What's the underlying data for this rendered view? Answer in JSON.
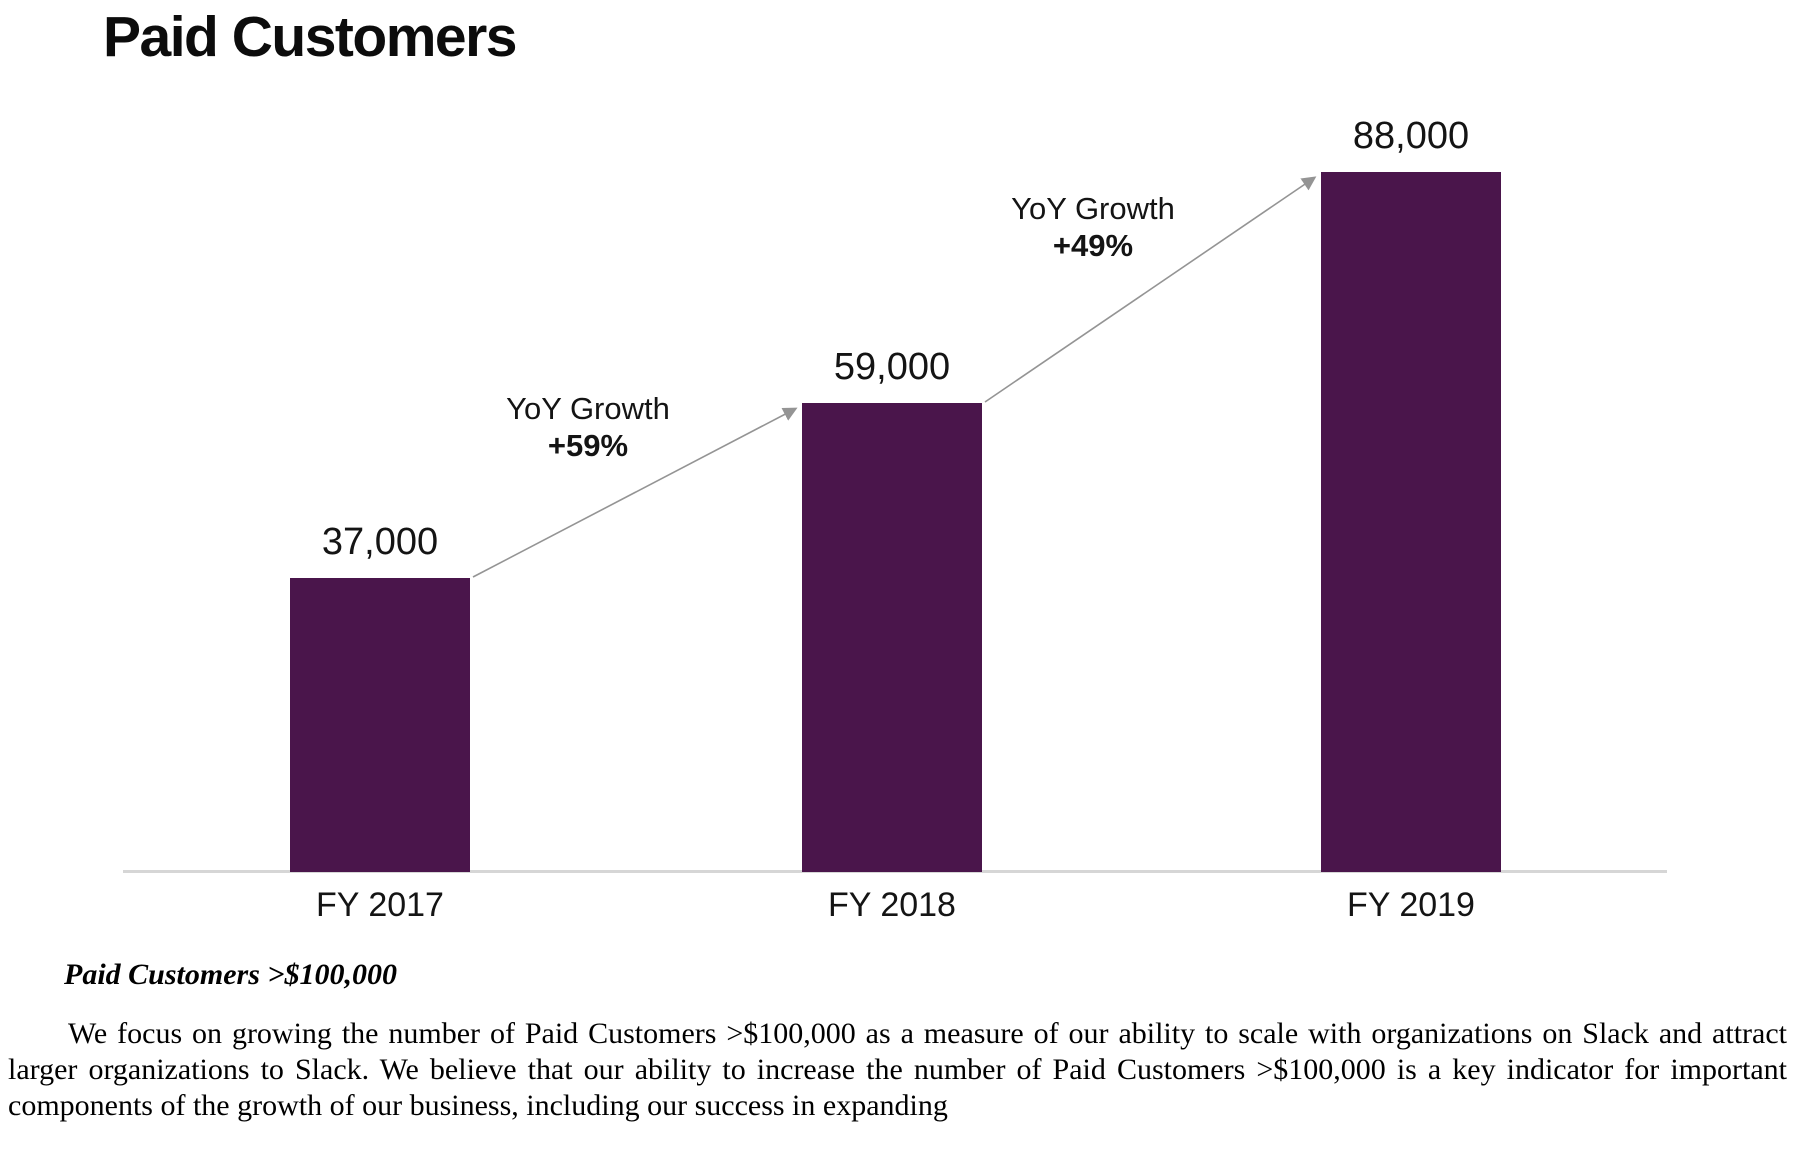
{
  "title": "Paid Customers",
  "chart_data": {
    "type": "bar",
    "title": "Paid Customers",
    "categories": [
      "FY 2017",
      "FY 2018",
      "FY 2019"
    ],
    "values": [
      37000,
      59000,
      88000
    ],
    "value_labels": [
      "37,000",
      "59,000",
      "88,000"
    ],
    "series": [
      {
        "name": "Paid Customers >$100,000",
        "values": [
          37000,
          59000,
          88000
        ]
      }
    ],
    "annotations": [
      {
        "label": "YoY Growth",
        "value": "+59%",
        "from": "FY 2017",
        "to": "FY 2018"
      },
      {
        "label": "YoY Growth",
        "value": "+49%",
        "from": "FY 2018",
        "to": "FY 2019"
      }
    ],
    "xlabel": "",
    "ylabel": "",
    "ylim": [
      0,
      88000
    ],
    "grid": false,
    "legend": false,
    "bar_color": "#4A154B",
    "axis_line_color": "#d6d6d6",
    "arrow_color": "#949494",
    "text_color": "#141414"
  },
  "footnote": {
    "caption": "Paid Customers >$100,000",
    "paragraph": "We focus on growing the number of Paid Customers >$100,000 as a measure of our ability to scale with organizations on Slack and attract larger organizations to Slack. We believe that our ability to increase the number of Paid Customers >$100,000 is a key indicator for important components of the growth of our business, including our success in expanding"
  }
}
